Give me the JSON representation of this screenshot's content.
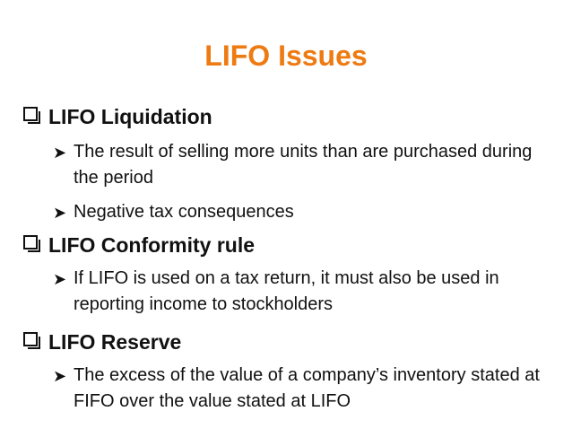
{
  "title": "LIFO Issues",
  "sections": [
    {
      "heading": "LIFO Liquidation",
      "bullets": [
        "The result of selling more units than are purchased during the period",
        "Negative tax consequences"
      ]
    },
    {
      "heading": "LIFO Conformity rule",
      "bullets": [
        "If LIFO is used on a tax return, it must also be used in reporting income to stockholders"
      ]
    },
    {
      "heading": "LIFO Reserve",
      "bullets": [
        "The excess of the value of a company’s inventory stated at FIFO over the value stated at LIFO"
      ]
    }
  ],
  "colors": {
    "title": "#ee7a12",
    "text": "#111111"
  },
  "icons": {
    "section_bullet": "checkbox-square-icon",
    "sub_bullet": "arrowhead-icon"
  }
}
